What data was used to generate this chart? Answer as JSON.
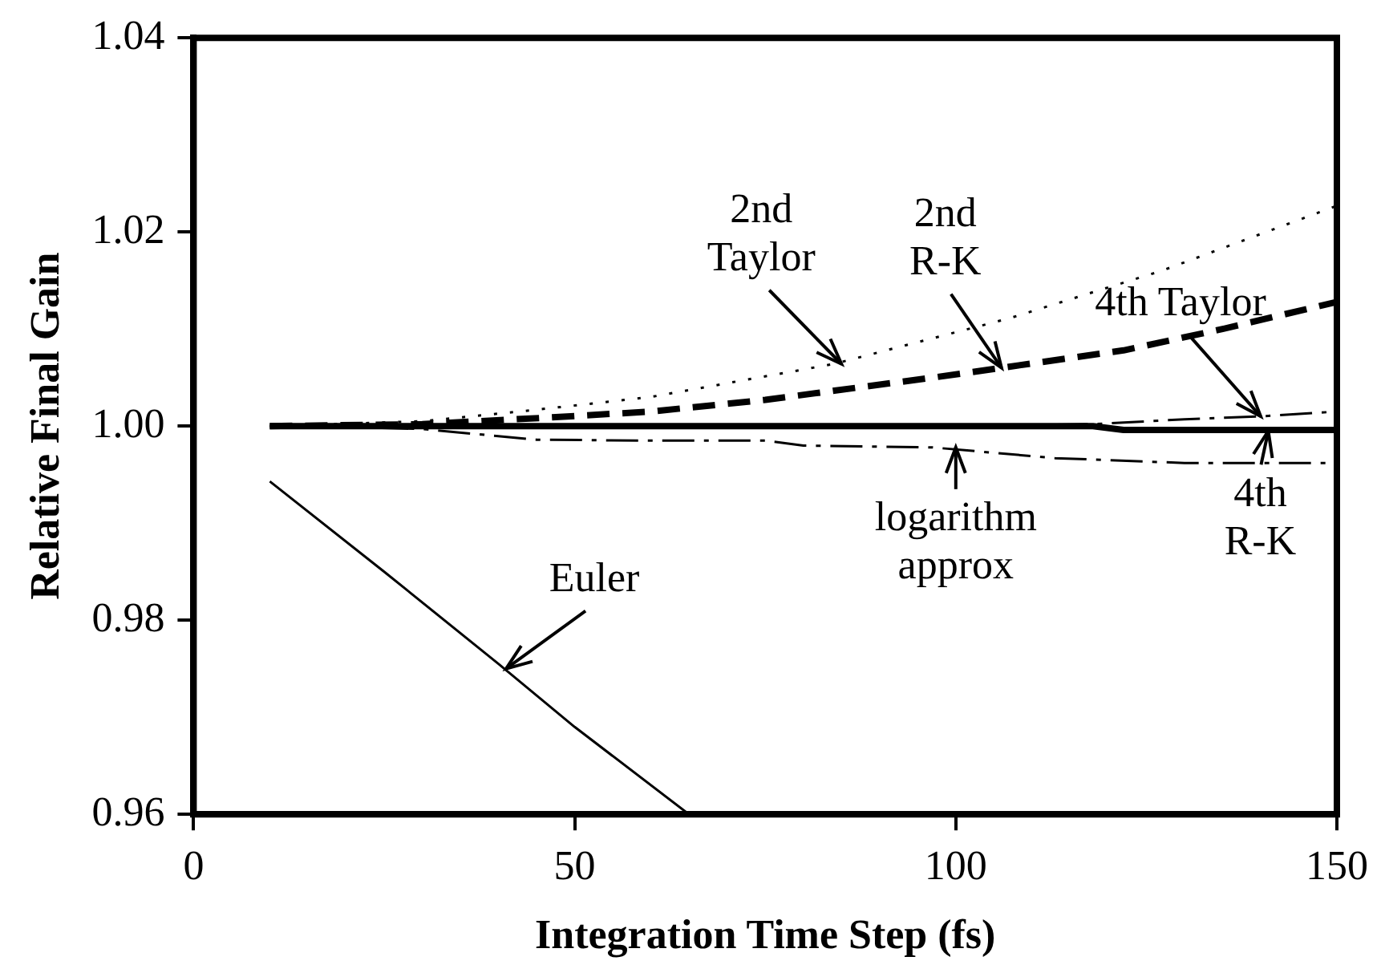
{
  "chart_data": {
    "type": "line",
    "xlabel": "Integration Time Step (fs)",
    "ylabel": "Relative Final Gain",
    "xlim": [
      0,
      150
    ],
    "xticks": [
      0,
      50,
      100,
      150
    ],
    "ylim": [
      0.96,
      1.04
    ],
    "yticks": [
      {
        "value": 0.96,
        "label": "0.96"
      },
      {
        "value": 0.98,
        "label": "0.98"
      },
      {
        "value": 1.0,
        "label": "1.00"
      },
      {
        "value": 1.02,
        "label": "1.02"
      },
      {
        "value": 1.04,
        "label": "1.04"
      }
    ],
    "grid": false,
    "legend": false,
    "marker": "none",
    "series": [
      {
        "color": "#000000",
        "line_style": "dotted",
        "x": [
          10,
          30,
          44,
          60,
          84,
          107,
          127,
          150
        ],
        "values": [
          1.0,
          1.0005,
          1.0016,
          1.003,
          1.0064,
          1.0111,
          1.016,
          1.0227
        ]
      },
      {
        "color": "#000000",
        "line_style": "dashed",
        "x": [
          10,
          30,
          47,
          60,
          75,
          97,
          106,
          122,
          135,
          150
        ],
        "values": [
          1.0,
          1.0002,
          1.0009,
          1.0015,
          1.0027,
          1.005,
          1.006,
          1.0078,
          1.01,
          1.0128
        ]
      },
      {
        "color": "#000000",
        "line_style": "solid",
        "x": [
          10,
          50,
          100,
          118,
          122,
          150
        ],
        "values": [
          1.0,
          1.0,
          1.0,
          1.0,
          0.9996,
          0.9996
        ]
      },
      {
        "color": "#000000",
        "line_style": "dashed",
        "x": [
          10,
          50,
          100,
          118,
          130,
          140,
          150
        ],
        "values": [
          1.0,
          1.0,
          1.0,
          1.0002,
          1.0007,
          1.001,
          1.0015
        ]
      },
      {
        "color": "#000000",
        "line_style": "dashed",
        "x": [
          10,
          20,
          30,
          45,
          60,
          75,
          80,
          97,
          113,
          130,
          150
        ],
        "values": [
          1.0,
          0.9999,
          0.9997,
          0.9986,
          0.9985,
          0.9985,
          0.998,
          0.9978,
          0.9967,
          0.9962,
          0.9962
        ]
      },
      {
        "color": "#000000",
        "line_style": "solid",
        "x": [
          10,
          25,
          40,
          50,
          65
        ],
        "values": [
          0.9943,
          0.985,
          0.9755,
          0.969,
          0.96
        ]
      }
    ],
    "annotations": [
      {
        "text": "2nd\nTaylor",
        "x": 85,
        "y": 1.0064
      },
      {
        "text": "2nd\nR-K",
        "x": 106,
        "y": 1.006
      },
      {
        "text": "4th Taylor",
        "x": 140,
        "y": 1.001
      },
      {
        "text": "Euler",
        "x": 41,
        "y": 0.975
      },
      {
        "text": "logarithm\napprox",
        "x": 100,
        "y": 0.9978
      },
      {
        "text": "4th\nR-K",
        "x": 141,
        "y": 0.9995
      }
    ]
  }
}
